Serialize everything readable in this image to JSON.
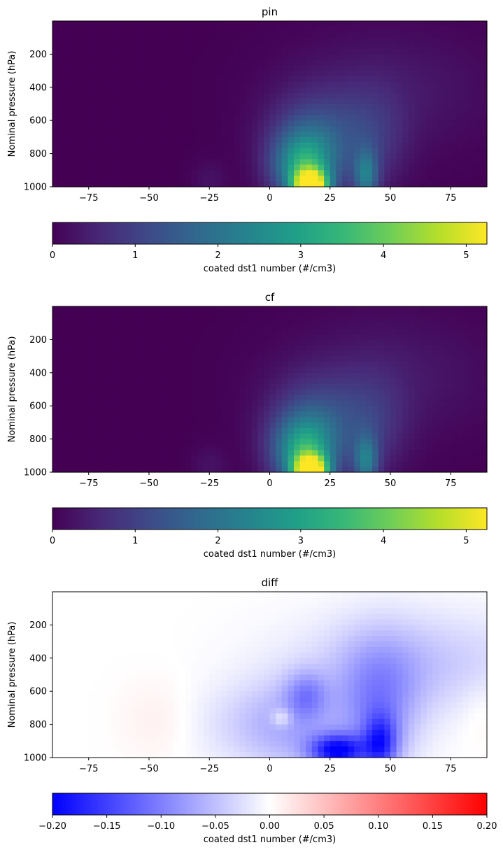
{
  "colors": {
    "viridis_stops": [
      "#440154",
      "#482878",
      "#3e4a89",
      "#31688e",
      "#26828e",
      "#1f9e89",
      "#35b779",
      "#6ece58",
      "#b5de2b",
      "#fde725"
    ],
    "bwr_stops": [
      "#0000ff",
      "#ffffff",
      "#ff0000"
    ]
  },
  "chart_data": [
    {
      "type": "heatmap",
      "title": "pin",
      "xlabel": "",
      "ylabel": "Nominal pressure (hPa)",
      "xlim": [
        -90,
        90
      ],
      "ylim": [
        1000,
        0
      ],
      "xticks": [
        -75,
        -50,
        -25,
        0,
        25,
        50,
        75
      ],
      "yticks": [
        200,
        400,
        600,
        800,
        1000
      ],
      "colormap": "viridis",
      "colorbar": {
        "label": "coated dst1 number (#/cm3)",
        "range": [
          0,
          5.25
        ],
        "ticks": [
          0,
          1,
          2,
          3,
          4,
          5
        ]
      },
      "features": [
        {
          "lat": 17,
          "p": 1000,
          "amp": 4.9,
          "wlat": 5,
          "wp": 70
        },
        {
          "lat": 14,
          "p": 880,
          "amp": 2.6,
          "wlat": 9,
          "wp": 150
        },
        {
          "lat": 20,
          "p": 700,
          "amp": 1.1,
          "wlat": 14,
          "wp": 200
        },
        {
          "lat": 40,
          "p": 940,
          "amp": 1.8,
          "wlat": 3.5,
          "wp": 110
        },
        {
          "lat": 43,
          "p": 720,
          "amp": 0.6,
          "wlat": 10,
          "wp": 220
        },
        {
          "lat": -25,
          "p": 960,
          "amp": 0.25,
          "wlat": 5,
          "wp": 80
        },
        {
          "lat": 50,
          "p": 420,
          "amp": 0.35,
          "wlat": 30,
          "wp": 260
        }
      ]
    },
    {
      "type": "heatmap",
      "title": "cf",
      "xlabel": "",
      "ylabel": "Nominal pressure (hPa)",
      "xlim": [
        -90,
        90
      ],
      "ylim": [
        1000,
        0
      ],
      "xticks": [
        -75,
        -50,
        -25,
        0,
        25,
        50,
        75
      ],
      "yticks": [
        200,
        400,
        600,
        800,
        1000
      ],
      "colormap": "viridis",
      "colorbar": {
        "label": "coated dst1 number (#/cm3)",
        "range": [
          0,
          5.25
        ],
        "ticks": [
          0,
          1,
          2,
          3,
          4,
          5
        ]
      },
      "features": [
        {
          "lat": 17,
          "p": 1000,
          "amp": 4.9,
          "wlat": 5,
          "wp": 70
        },
        {
          "lat": 14,
          "p": 880,
          "amp": 2.6,
          "wlat": 9,
          "wp": 150
        },
        {
          "lat": 20,
          "p": 700,
          "amp": 1.1,
          "wlat": 14,
          "wp": 200
        },
        {
          "lat": 40,
          "p": 940,
          "amp": 1.8,
          "wlat": 3.5,
          "wp": 110
        },
        {
          "lat": 43,
          "p": 720,
          "amp": 0.6,
          "wlat": 10,
          "wp": 220
        },
        {
          "lat": -25,
          "p": 960,
          "amp": 0.25,
          "wlat": 5,
          "wp": 80
        },
        {
          "lat": 50,
          "p": 420,
          "amp": 0.35,
          "wlat": 30,
          "wp": 260
        }
      ]
    },
    {
      "type": "heatmap",
      "title": "diff",
      "xlabel": "",
      "ylabel": "Nominal pressure (hPa)",
      "xlim": [
        -90,
        90
      ],
      "ylim": [
        1000,
        0
      ],
      "xticks": [
        -75,
        -50,
        -25,
        0,
        25,
        50,
        75
      ],
      "yticks": [
        200,
        400,
        600,
        800,
        1000
      ],
      "colormap": "bwr",
      "colorbar": {
        "label": "coated dst1 number (#/cm3)",
        "range": [
          -0.2,
          0.2
        ],
        "ticks": [
          -0.2,
          -0.15,
          -0.1,
          -0.05,
          0.0,
          0.05,
          0.1,
          0.15,
          0.2
        ]
      },
      "features": [
        {
          "lat": 28,
          "p": 960,
          "amp": -0.17,
          "wlat": 8,
          "wp": 70
        },
        {
          "lat": 46,
          "p": 920,
          "amp": -0.12,
          "wlat": 5,
          "wp": 120
        },
        {
          "lat": 45,
          "p": 700,
          "amp": -0.08,
          "wlat": 12,
          "wp": 280
        },
        {
          "lat": 15,
          "p": 620,
          "amp": -0.06,
          "wlat": 6,
          "wp": 100
        },
        {
          "lat": 10,
          "p": 820,
          "amp": -0.05,
          "wlat": 15,
          "wp": 200
        },
        {
          "lat": 60,
          "p": 430,
          "amp": -0.045,
          "wlat": 35,
          "wp": 220
        },
        {
          "lat": -10,
          "p": 800,
          "amp": -0.025,
          "wlat": 20,
          "wp": 180
        },
        {
          "lat": 5,
          "p": 760,
          "amp": 0.05,
          "wlat": 3,
          "wp": 40
        },
        {
          "lat": -45,
          "p": 780,
          "amp": 0.015,
          "wlat": 12,
          "wp": 180
        },
        {
          "lat": 88,
          "p": 730,
          "amp": 0.012,
          "wlat": 6,
          "wp": 150
        }
      ]
    }
  ]
}
